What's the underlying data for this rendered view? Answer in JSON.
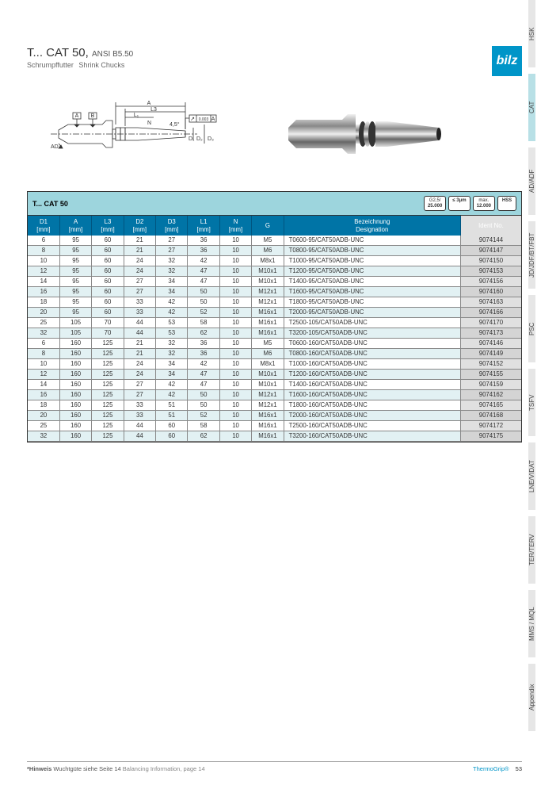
{
  "header": {
    "title_prefix": "T... ",
    "title_main": "CAT 50,",
    "title_ansi": "ANSI B5.50",
    "subtitle_de": "Schrumpffutter",
    "subtitle_en": "Shrink Chucks",
    "logo_text": "bilz"
  },
  "side_tabs": [
    {
      "label": "HSK",
      "h": 85,
      "active": false
    },
    {
      "label": "CAT",
      "h": 85,
      "active": true
    },
    {
      "label": "AD/ADF",
      "h": 85,
      "active": false
    },
    {
      "label": "JD/JDF/BT/FBT",
      "h": 85,
      "active": false
    },
    {
      "label": "PSC",
      "h": 85,
      "active": false
    },
    {
      "label": "TSFV",
      "h": 85,
      "active": false
    },
    {
      "label": "LNE/VIDAT",
      "h": 85,
      "active": false
    },
    {
      "label": "TER/TERV",
      "h": 85,
      "active": false
    },
    {
      "label": "MMS / MQL",
      "h": 85,
      "active": false
    },
    {
      "label": "Appendix",
      "h": 85,
      "active": false
    }
  ],
  "table_title": "T... CAT 50",
  "badges": [
    {
      "top": "G2,5/",
      "bot": "25.000"
    },
    {
      "top": "",
      "bot": "≤ 3μm"
    },
    {
      "top": "max.",
      "bot": "12.000"
    },
    {
      "top": "",
      "bot": "HSS"
    }
  ],
  "columns": [
    {
      "l1": "D1",
      "l2": "[mm]"
    },
    {
      "l1": "A",
      "l2": "[mm]"
    },
    {
      "l1": "L3",
      "l2": "[mm]"
    },
    {
      "l1": "D2",
      "l2": "[mm]"
    },
    {
      "l1": "D3",
      "l2": "[mm]"
    },
    {
      "l1": "L1",
      "l2": "[mm]"
    },
    {
      "l1": "N",
      "l2": "[mm]"
    },
    {
      "l1": "G",
      "l2": ""
    },
    {
      "l1": "Bezeichnung",
      "l2": "Designation"
    },
    {
      "l1": "Ident No.",
      "l2": ""
    }
  ],
  "rows": [
    [
      "6",
      "95",
      "60",
      "21",
      "27",
      "36",
      "10",
      "M5",
      "T0600-95/CAT50ADB-UNC",
      "9074144"
    ],
    [
      "8",
      "95",
      "60",
      "21",
      "27",
      "36",
      "10",
      "M6",
      "T0800-95/CAT50ADB-UNC",
      "9074147"
    ],
    [
      "10",
      "95",
      "60",
      "24",
      "32",
      "42",
      "10",
      "M8x1",
      "T1000-95/CAT50ADB-UNC",
      "9074150"
    ],
    [
      "12",
      "95",
      "60",
      "24",
      "32",
      "47",
      "10",
      "M10x1",
      "T1200-95/CAT50ADB-UNC",
      "9074153"
    ],
    [
      "14",
      "95",
      "60",
      "27",
      "34",
      "47",
      "10",
      "M10x1",
      "T1400-95/CAT50ADB-UNC",
      "9074156"
    ],
    [
      "16",
      "95",
      "60",
      "27",
      "34",
      "50",
      "10",
      "M12x1",
      "T1600-95/CAT50ADB-UNC",
      "9074160"
    ],
    [
      "18",
      "95",
      "60",
      "33",
      "42",
      "50",
      "10",
      "M12x1",
      "T1800-95/CAT50ADB-UNC",
      "9074163"
    ],
    [
      "20",
      "95",
      "60",
      "33",
      "42",
      "52",
      "10",
      "M16x1",
      "T2000-95/CAT50ADB-UNC",
      "9074166"
    ],
    [
      "25",
      "105",
      "70",
      "44",
      "53",
      "58",
      "10",
      "M16x1",
      "T2500-105/CAT50ADB-UNC",
      "9074170"
    ],
    [
      "32",
      "105",
      "70",
      "44",
      "53",
      "62",
      "10",
      "M16x1",
      "T3200-105/CAT50ADB-UNC",
      "9074173"
    ],
    [
      "6",
      "160",
      "125",
      "21",
      "32",
      "36",
      "10",
      "M5",
      "T0600-160/CAT50ADB-UNC",
      "9074146"
    ],
    [
      "8",
      "160",
      "125",
      "21",
      "32",
      "36",
      "10",
      "M6",
      "T0800-160/CAT50ADB-UNC",
      "9074149"
    ],
    [
      "10",
      "160",
      "125",
      "24",
      "34",
      "42",
      "10",
      "M8x1",
      "T1000-160/CAT50ADB-UNC",
      "9074152"
    ],
    [
      "12",
      "160",
      "125",
      "24",
      "34",
      "47",
      "10",
      "M10x1",
      "T1200-160/CAT50ADB-UNC",
      "9074155"
    ],
    [
      "14",
      "160",
      "125",
      "27",
      "42",
      "47",
      "10",
      "M10x1",
      "T1400-160/CAT50ADB-UNC",
      "9074159"
    ],
    [
      "16",
      "160",
      "125",
      "27",
      "42",
      "50",
      "10",
      "M12x1",
      "T1600-160/CAT50ADB-UNC",
      "9074162"
    ],
    [
      "18",
      "160",
      "125",
      "33",
      "51",
      "50",
      "10",
      "M12x1",
      "T1800-160/CAT50ADB-UNC",
      "9074165"
    ],
    [
      "20",
      "160",
      "125",
      "33",
      "51",
      "52",
      "10",
      "M16x1",
      "T2000-160/CAT50ADB-UNC",
      "9074168"
    ],
    [
      "25",
      "160",
      "125",
      "44",
      "60",
      "58",
      "10",
      "M16x1",
      "T2500-160/CAT50ADB-UNC",
      "9074172"
    ],
    [
      "32",
      "160",
      "125",
      "44",
      "60",
      "62",
      "10",
      "M16x1",
      "T3200-160/CAT50ADB-UNC",
      "9074175"
    ]
  ],
  "diagram_labels": {
    "dim_a": "A",
    "dim_l3": "L3",
    "dim_l1": "L₁",
    "dim_n": "N",
    "dim_d1": "D₁",
    "dim_d2": "D₂",
    "dim_d3": "D₃",
    "dim_ad": "AD",
    "datum_a": "A",
    "datum_b": "B",
    "angle": "4,5°",
    "tol": "0.003",
    "tol_ref": "A"
  },
  "footer": {
    "hint_bold": "*Hinweis",
    "hint_de": "Wuchtgüte siehe Seite 14",
    "hint_en": "Balancing Information, page 14",
    "brand": "ThermoGrip®",
    "page": "53"
  },
  "colors": {
    "brand": "#0095c8",
    "tab_bg": "#e6e6e6",
    "tab_active": "#b8e0e6",
    "thead": "#0074a6",
    "title_row": "#9dd5dd",
    "row_even": "#e2f1f3"
  }
}
